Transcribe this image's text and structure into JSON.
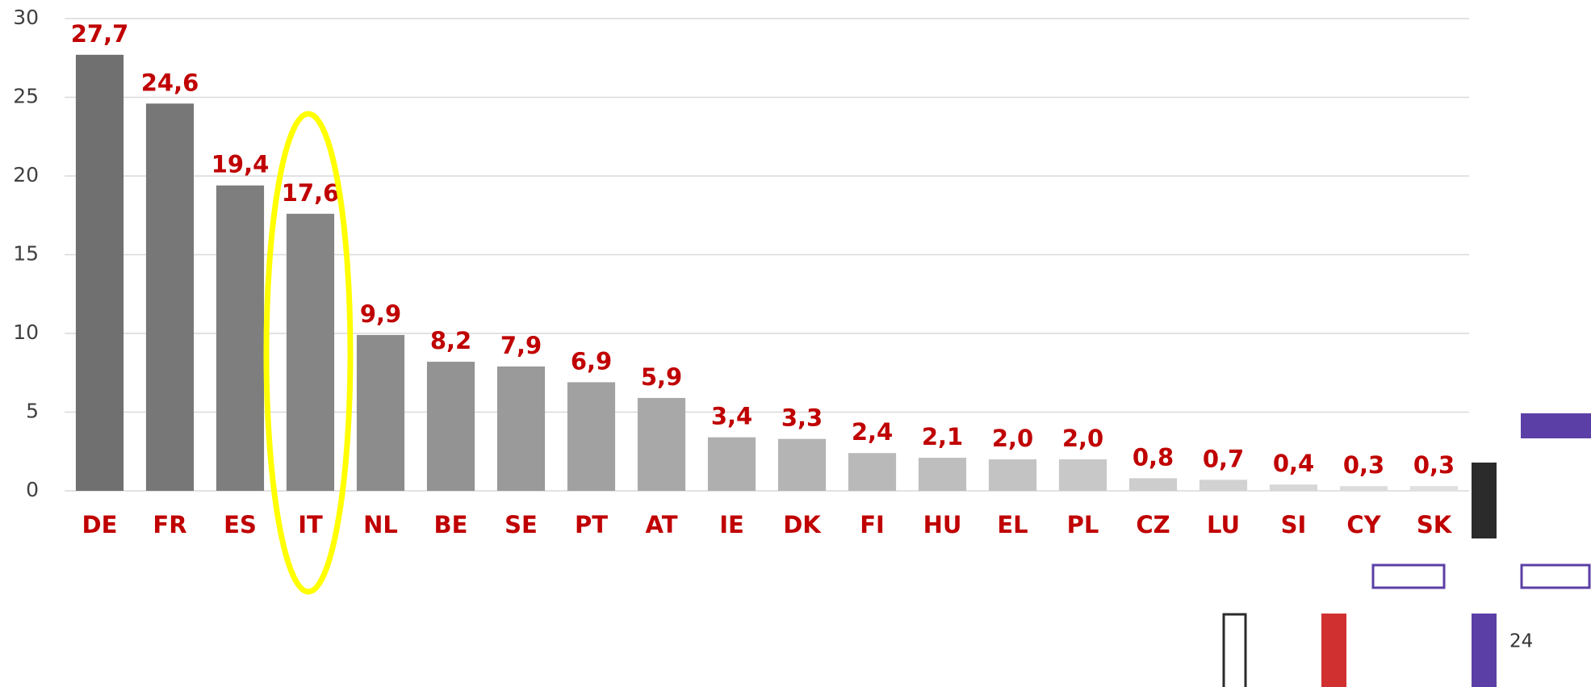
{
  "chart_data": {
    "type": "bar",
    "categories": [
      "DE",
      "FR",
      "ES",
      "IT",
      "NL",
      "BE",
      "SE",
      "PT",
      "AT",
      "IE",
      "DK",
      "FI",
      "HU",
      "EL",
      "PL",
      "CZ",
      "LU",
      "SI",
      "CY",
      "SK"
    ],
    "values": [
      27.7,
      24.6,
      19.4,
      17.6,
      9.9,
      8.2,
      7.9,
      6.9,
      5.9,
      3.4,
      3.3,
      2.4,
      2.1,
      2.0,
      2.0,
      0.8,
      0.7,
      0.4,
      0.3,
      0.3
    ],
    "value_labels": [
      "27,7",
      "24,6",
      "19,4",
      "17,6",
      "9,9",
      "8,2",
      "7,9",
      "6,9",
      "5,9",
      "3,4",
      "3,3",
      "2,4",
      "2,1",
      "2,0",
      "2,0",
      "0,8",
      "0,7",
      "0,4",
      "0,3",
      "0,3"
    ],
    "colors": [
      "#707070",
      "#777777",
      "#7e7e7e",
      "#858585",
      "#8c8c8c",
      "#939393",
      "#9a9a9a",
      "#a1a1a1",
      "#a8a8a8",
      "#afafaf",
      "#b4b4b4",
      "#b9b9b9",
      "#bebebe",
      "#c3c3c3",
      "#c8c8c8",
      "#cdcdcd",
      "#d2d2d2",
      "#d7d7d7",
      "#dcdcdc",
      "#e0e0e0"
    ],
    "ylim": [
      0,
      30
    ],
    "yticks": [
      0,
      5,
      10,
      15,
      20,
      25,
      30
    ],
    "grid": true
  },
  "page_number": "24"
}
